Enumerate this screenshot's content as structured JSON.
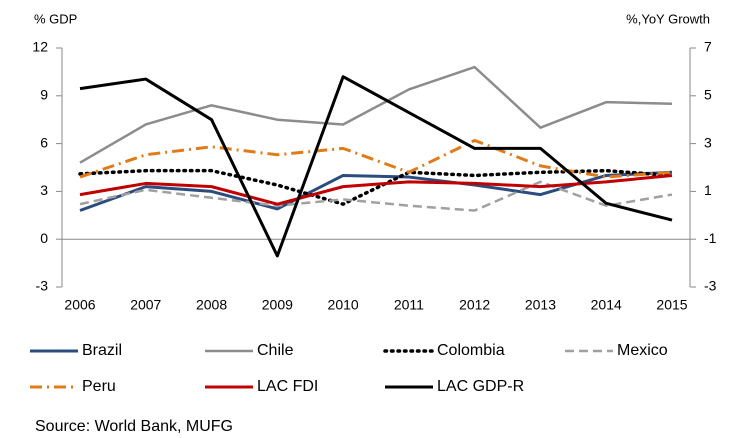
{
  "chart_data": {
    "type": "line",
    "ylabel": "% GDP",
    "y2label": "%,YoY Growth",
    "source": "Source: World Bank, MUFG",
    "categories": [
      "2006",
      "2007",
      "2008",
      "2009",
      "2010",
      "2011",
      "2012",
      "2013",
      "2014",
      "2015"
    ],
    "ylim": [
      -3,
      12
    ],
    "yticks": [
      -3,
      0,
      3,
      6,
      9,
      12
    ],
    "y2lim": [
      -3,
      7
    ],
    "y2ticks": [
      -3,
      -1,
      1,
      3,
      5,
      7
    ],
    "grid": false,
    "series": [
      {
        "name": "Brazil",
        "color": "#2b4c7e",
        "line_style": "solid",
        "values": [
          1.8,
          3.3,
          3.0,
          1.9,
          4.0,
          3.9,
          3.4,
          2.8,
          4.0,
          4.2
        ]
      },
      {
        "name": "Chile",
        "color": "#8c8c8c",
        "line_style": "solid",
        "values": [
          4.8,
          7.2,
          8.4,
          7.5,
          7.2,
          9.4,
          10.8,
          7.0,
          8.6,
          8.5
        ]
      },
      {
        "name": "Colombia",
        "color": "#000000",
        "line_style": "dotted",
        "values": [
          4.1,
          4.3,
          4.3,
          3.4,
          2.2,
          4.2,
          4.0,
          4.2,
          4.3,
          4.0
        ]
      },
      {
        "name": "Mexico",
        "color": "#a0a0a0",
        "line_style": "dashed",
        "values": [
          2.2,
          3.1,
          2.6,
          2.1,
          2.5,
          2.1,
          1.8,
          3.6,
          2.1,
          2.8
        ]
      },
      {
        "name": "Peru",
        "color": "#e07b1a",
        "line_style": "dashdot",
        "values": [
          3.9,
          5.3,
          5.8,
          5.3,
          5.7,
          4.2,
          6.2,
          4.6,
          3.9,
          4.2
        ]
      },
      {
        "name": "LAC FDI",
        "color": "#c00000",
        "line_style": "solid",
        "values": [
          2.8,
          3.5,
          3.3,
          2.2,
          3.3,
          3.6,
          3.5,
          3.3,
          3.6,
          4.0
        ]
      },
      {
        "name": "LAC GDP-R",
        "color": "#000000",
        "line_style": "solid",
        "axis": "y2",
        "values": [
          5.3,
          5.7,
          4.0,
          -1.7,
          5.8,
          4.3,
          2.8,
          2.8,
          0.5,
          -0.2
        ]
      }
    ]
  }
}
